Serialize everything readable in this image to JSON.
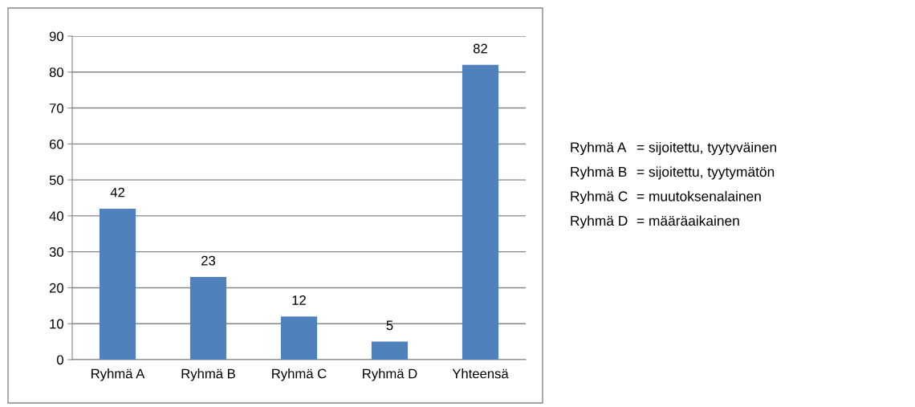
{
  "chart_data": {
    "type": "bar",
    "categories": [
      "Ryhmä A",
      "Ryhmä B",
      "Ryhmä C",
      "Ryhmä D",
      "Yhteensä"
    ],
    "values": [
      42,
      23,
      12,
      5,
      82
    ],
    "color": "#4f81bd",
    "ylim": [
      0,
      90
    ],
    "yticks": [
      0,
      10,
      20,
      30,
      40,
      50,
      60,
      70,
      80,
      90
    ],
    "grid": "y",
    "data_labels": true,
    "legend": false,
    "annotations": [
      "Ryhmä A = sijoitettu, tyytyväinen",
      "Ryhmä B = sijoitettu, tyytymätön",
      "Ryhmä C = muutoksenalainen",
      "Ryhmä D = määräaikainen"
    ]
  }
}
